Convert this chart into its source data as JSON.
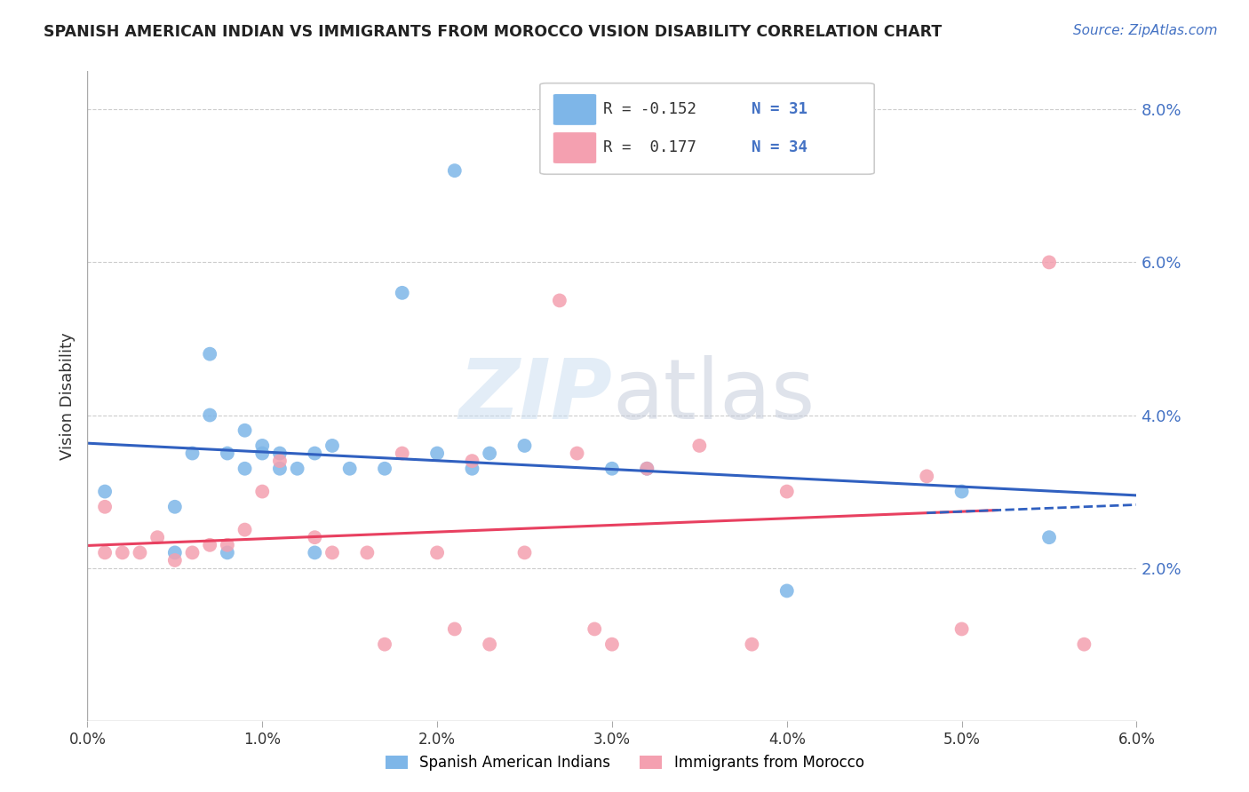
{
  "title": "SPANISH AMERICAN INDIAN VS IMMIGRANTS FROM MOROCCO VISION DISABILITY CORRELATION CHART",
  "source": "Source: ZipAtlas.com",
  "ylabel": "Vision Disability",
  "watermark_zip": "ZIP",
  "watermark_atlas": "atlas",
  "xlim": [
    0.0,
    0.06
  ],
  "ylim": [
    0.0,
    0.085
  ],
  "xticks": [
    0.0,
    0.01,
    0.02,
    0.03,
    0.04,
    0.05,
    0.06
  ],
  "xtick_labels": [
    "0.0%",
    "1.0%",
    "2.0%",
    "3.0%",
    "4.0%",
    "5.0%",
    "6.0%"
  ],
  "yticks": [
    0.0,
    0.02,
    0.04,
    0.06,
    0.08
  ],
  "ytick_labels": [
    "",
    "2.0%",
    "4.0%",
    "6.0%",
    "8.0%"
  ],
  "blue_color": "#7EB6E8",
  "pink_color": "#F4A0B0",
  "line_blue": "#3060C0",
  "line_pink": "#E84060",
  "legend_R1": "-0.152",
  "legend_N1": "31",
  "legend_R2": " 0.177",
  "legend_N2": "34",
  "legend_label1": "Spanish American Indians",
  "legend_label2": "Immigrants from Morocco",
  "blue_x": [
    0.001,
    0.005,
    0.005,
    0.006,
    0.007,
    0.007,
    0.008,
    0.008,
    0.009,
    0.009,
    0.01,
    0.01,
    0.011,
    0.011,
    0.012,
    0.013,
    0.013,
    0.014,
    0.015,
    0.017,
    0.018,
    0.02,
    0.021,
    0.022,
    0.023,
    0.025,
    0.03,
    0.032,
    0.04,
    0.05,
    0.055
  ],
  "blue_y": [
    0.03,
    0.028,
    0.022,
    0.035,
    0.048,
    0.04,
    0.035,
    0.022,
    0.038,
    0.033,
    0.035,
    0.036,
    0.033,
    0.035,
    0.033,
    0.022,
    0.035,
    0.036,
    0.033,
    0.033,
    0.056,
    0.035,
    0.072,
    0.033,
    0.035,
    0.036,
    0.033,
    0.033,
    0.017,
    0.03,
    0.024
  ],
  "pink_x": [
    0.001,
    0.001,
    0.002,
    0.003,
    0.004,
    0.005,
    0.006,
    0.007,
    0.008,
    0.009,
    0.01,
    0.011,
    0.013,
    0.014,
    0.016,
    0.017,
    0.018,
    0.02,
    0.021,
    0.022,
    0.023,
    0.025,
    0.027,
    0.028,
    0.029,
    0.03,
    0.032,
    0.035,
    0.038,
    0.04,
    0.048,
    0.05,
    0.055,
    0.057
  ],
  "pink_y": [
    0.028,
    0.022,
    0.022,
    0.022,
    0.024,
    0.021,
    0.022,
    0.023,
    0.023,
    0.025,
    0.03,
    0.034,
    0.024,
    0.022,
    0.022,
    0.01,
    0.035,
    0.022,
    0.012,
    0.034,
    0.01,
    0.022,
    0.055,
    0.035,
    0.012,
    0.01,
    0.033,
    0.036,
    0.01,
    0.03,
    0.032,
    0.012,
    0.06,
    0.01
  ]
}
